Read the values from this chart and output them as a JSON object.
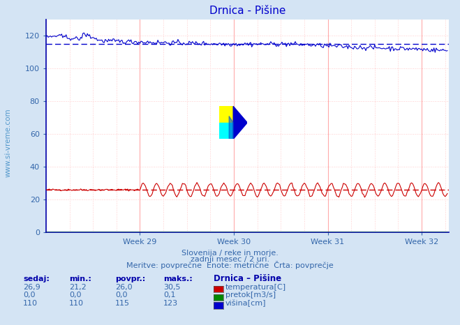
{
  "title": "Drnica - Pišine",
  "background_color": "#d4e4f4",
  "plot_bg_color": "#ffffff",
  "grid_color_h": "#ffcccc",
  "grid_color_v": "#ffcccc",
  "xlim": [
    0,
    360
  ],
  "ylim": [
    0,
    130
  ],
  "yticks": [
    0,
    20,
    40,
    60,
    80,
    100,
    120
  ],
  "week_ticks": [
    84,
    168,
    252,
    336
  ],
  "week_labels": [
    "Week 29",
    "Week 30",
    "Week 31",
    "Week 32"
  ],
  "temp_color": "#cc0000",
  "temp_avg": 26.0,
  "visina_color": "#0000cc",
  "visina_avg": 115,
  "pretok_color": "#008800",
  "subtitle1": "Slovenija / reke in morje.",
  "subtitle2": "zadnji mesec / 2 uri.",
  "subtitle3": "Meritve: povprečne  Enote: metrične  Črta: povprečje",
  "legend_title": "Drnica – Pišine",
  "col_headers": [
    "sedaj:",
    "min.:",
    "povpr.:",
    "maks.:"
  ],
  "row1": [
    "26,9",
    "21,2",
    "26,0",
    "30,5"
  ],
  "row2": [
    "0,0",
    "0,0",
    "0,0",
    "0,1"
  ],
  "row3": [
    "110",
    "110",
    "115",
    "123"
  ],
  "legend_labels": [
    "temperatura[C]",
    "pretok[m3/s]",
    "višina[cm]"
  ],
  "legend_colors": [
    "#cc0000",
    "#008800",
    "#0000cc"
  ],
  "n_points": 360
}
